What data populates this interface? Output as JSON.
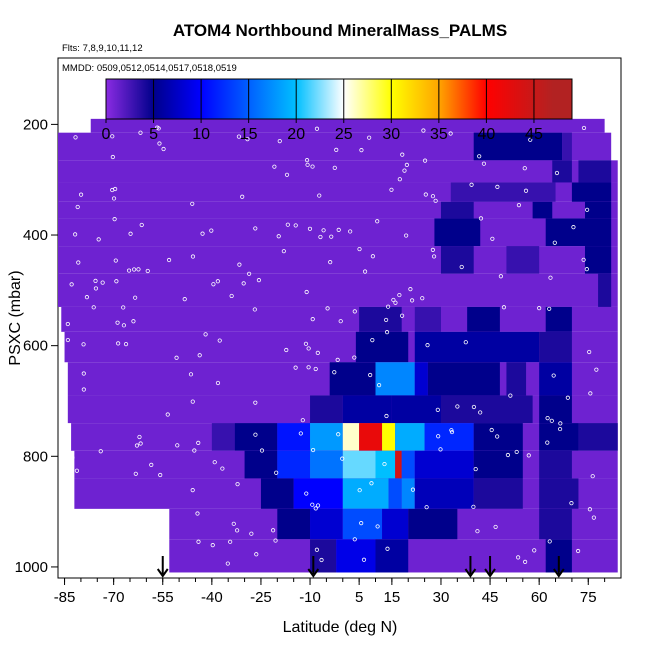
{
  "chart_data": {
    "type": "heatmap",
    "title": "ATOM4 Northbound MineralMass_PALMS",
    "notes": [
      "Flts: 7,8,9,10,11,12",
      "MMDD: 0509,0512,0514,0517,0518,0519"
    ],
    "xlabel": "Latitude (deg N)",
    "ylabel": "PSXC (mbar)",
    "xlim": [
      -87,
      85
    ],
    "ylim": [
      1020,
      80
    ],
    "x_ticks": [
      -85,
      -70,
      -55,
      -40,
      -25,
      -10,
      5,
      15,
      30,
      45,
      60,
      75
    ],
    "y_ticks": [
      200,
      400,
      600,
      800,
      1000
    ],
    "colorbar": {
      "min": 0,
      "max": 49,
      "ticks": [
        0,
        5,
        10,
        15,
        20,
        25,
        30,
        35,
        40,
        45
      ],
      "colors": [
        "#8a2be2",
        "#00008b",
        "#0000ff",
        "#00bfff",
        "#ffffff",
        "#ffff00",
        "#ffa500",
        "#ff0000",
        "#b22222"
      ],
      "color_positions": [
        0,
        5,
        10,
        20,
        25,
        30,
        35,
        40,
        47
      ]
    },
    "background_value": 1,
    "pressure_bands": [
      {
        "p": [
          190,
          215
        ],
        "lat": [
          -77,
          80
        ],
        "cells": []
      },
      {
        "p": [
          215,
          265
        ],
        "lat": [
          -87,
          82
        ],
        "cells": [
          {
            "lat": [
              40,
              67
            ],
            "v": 5
          },
          {
            "lat": [
              67,
              70
            ],
            "v": 3
          }
        ]
      },
      {
        "p": [
          265,
          305
        ],
        "lat": [
          -87,
          84
        ],
        "cells": [
          {
            "lat": [
              64,
              70
            ],
            "v": 4
          },
          {
            "lat": [
              72,
              82
            ],
            "v": 4
          }
        ]
      },
      {
        "p": [
          305,
          340
        ],
        "lat": [
          -87,
          84
        ],
        "cells": [
          {
            "lat": [
              33,
              65
            ],
            "v": 3
          },
          {
            "lat": [
              70,
              82
            ],
            "v": 5
          }
        ]
      },
      {
        "p": [
          340,
          370
        ],
        "lat": [
          -87,
          84
        ],
        "cells": [
          {
            "lat": [
              30,
              40
            ],
            "v": 4
          },
          {
            "lat": [
              58,
              64
            ],
            "v": 5
          },
          {
            "lat": [
              74,
              82
            ],
            "v": 5
          }
        ]
      },
      {
        "p": [
          370,
          420
        ],
        "lat": [
          -87,
          84
        ],
        "cells": [
          {
            "lat": [
              28,
              42
            ],
            "v": 5
          },
          {
            "lat": [
              62,
              82
            ],
            "v": 5
          }
        ]
      },
      {
        "p": [
          420,
          470
        ],
        "lat": [
          -87,
          84
        ],
        "cells": [
          {
            "lat": [
              30,
              40
            ],
            "v": 4
          },
          {
            "lat": [
              50,
              60
            ],
            "v": 3
          },
          {
            "lat": [
              74,
              82
            ],
            "v": 5
          }
        ]
      },
      {
        "p": [
          470,
          530
        ],
        "lat": [
          -87,
          84
        ],
        "cells": [
          {
            "lat": [
              78,
              82
            ],
            "v": 4
          }
        ]
      },
      {
        "p": [
          530,
          575
        ],
        "lat": [
          -86,
          84
        ],
        "cells": [
          {
            "lat": [
              5,
              18
            ],
            "v": 4
          },
          {
            "lat": [
              22,
              30
            ],
            "v": 3
          },
          {
            "lat": [
              38,
              48
            ],
            "v": 5
          },
          {
            "lat": [
              62,
              70
            ],
            "v": 5
          }
        ]
      },
      {
        "p": [
          575,
          630
        ],
        "lat": [
          -85,
          84
        ],
        "cells": [
          {
            "lat": [
              4,
              20
            ],
            "v": 5
          },
          {
            "lat": [
              22,
              60
            ],
            "v": 6
          },
          {
            "lat": [
              60,
              70
            ],
            "v": 4
          }
        ]
      },
      {
        "p": [
          630,
          690
        ],
        "lat": [
          -84,
          84
        ],
        "cells": [
          {
            "lat": [
              -4,
              10
            ],
            "v": 5
          },
          {
            "lat": [
              10,
              22
            ],
            "v": 17
          },
          {
            "lat": [
              22,
              26
            ],
            "v": 8
          },
          {
            "lat": [
              26,
              48
            ],
            "v": 5
          },
          {
            "lat": [
              50,
              56
            ],
            "v": 4
          },
          {
            "lat": [
              60,
              70
            ],
            "v": 6
          }
        ]
      },
      {
        "p": [
          690,
          740
        ],
        "lat": [
          -84,
          84
        ],
        "cells": [
          {
            "lat": [
              -10,
              0
            ],
            "v": 4
          },
          {
            "lat": [
              0,
              15
            ],
            "v": 6
          },
          {
            "lat": [
              15,
              30
            ],
            "v": 6
          },
          {
            "lat": [
              30,
              58
            ],
            "v": 4
          },
          {
            "lat": [
              60,
              70
            ],
            "v": 5
          }
        ]
      },
      {
        "p": [
          740,
          790
        ],
        "lat": [
          -83,
          84
        ],
        "cells": [
          {
            "lat": [
              -40,
              -33
            ],
            "v": 3
          },
          {
            "lat": [
              -33,
              -20
            ],
            "v": 5
          },
          {
            "lat": [
              -20,
              -10
            ],
            "v": 11
          },
          {
            "lat": [
              -10,
              0
            ],
            "v": 18
          },
          {
            "lat": [
              0,
              5
            ],
            "v": 26
          },
          {
            "lat": [
              5,
              12
            ],
            "v": 42
          },
          {
            "lat": [
              12,
              16
            ],
            "v": 30
          },
          {
            "lat": [
              16,
              25
            ],
            "v": 19
          },
          {
            "lat": [
              25,
              40
            ],
            "v": 12
          },
          {
            "lat": [
              40,
              55
            ],
            "v": 5
          },
          {
            "lat": [
              60,
              72
            ],
            "v": 5
          },
          {
            "lat": [
              72,
              84
            ],
            "v": 4
          }
        ]
      },
      {
        "p": [
          790,
          840
        ],
        "lat": [
          -82,
          84
        ],
        "cells": [
          {
            "lat": [
              -30,
              -20
            ],
            "v": 5
          },
          {
            "lat": [
              -20,
              -10
            ],
            "v": 12
          },
          {
            "lat": [
              -10,
              0
            ],
            "v": 16
          },
          {
            "lat": [
              0,
              10
            ],
            "v": 22
          },
          {
            "lat": [
              10,
              16
            ],
            "v": 20
          },
          {
            "lat": [
              16,
              18
            ],
            "v": 44
          },
          {
            "lat": [
              18,
              22
            ],
            "v": 14
          },
          {
            "lat": [
              22,
              40
            ],
            "v": 8
          },
          {
            "lat": [
              40,
              55
            ],
            "v": 5
          },
          {
            "lat": [
              60,
              70
            ],
            "v": 4
          }
        ]
      },
      {
        "p": [
          840,
          895
        ],
        "lat": [
          -82,
          84
        ],
        "cells": [
          {
            "lat": [
              -25,
              -15
            ],
            "v": 5
          },
          {
            "lat": [
              -15,
              0
            ],
            "v": 10
          },
          {
            "lat": [
              0,
              14
            ],
            "v": 19
          },
          {
            "lat": [
              14,
              18
            ],
            "v": 14
          },
          {
            "lat": [
              18,
              22
            ],
            "v": 17
          },
          {
            "lat": [
              22,
              40
            ],
            "v": 7
          },
          {
            "lat": [
              40,
              55
            ],
            "v": 4
          },
          {
            "lat": [
              60,
              72
            ],
            "v": 4
          }
        ]
      },
      {
        "p": [
          895,
          950
        ],
        "lat": [
          -53,
          84
        ],
        "cells": [
          {
            "lat": [
              -20,
              -10
            ],
            "v": 5
          },
          {
            "lat": [
              -10,
              0
            ],
            "v": 8
          },
          {
            "lat": [
              0,
              12
            ],
            "v": 14
          },
          {
            "lat": [
              12,
              20
            ],
            "v": 8
          },
          {
            "lat": [
              20,
              35
            ],
            "v": 5
          },
          {
            "lat": [
              60,
              70
            ],
            "v": 4
          }
        ]
      },
      {
        "p": [
          950,
          1010
        ],
        "lat": [
          -53,
          84
        ],
        "cells": [
          {
            "lat": [
              -10,
              -2
            ],
            "v": 4
          },
          {
            "lat": [
              -2,
              10
            ],
            "v": 9
          },
          {
            "lat": [
              10,
              20
            ],
            "v": 6
          },
          {
            "lat": [
              62,
              70
            ],
            "v": 5
          }
        ]
      }
    ],
    "arrows_lat": [
      -55,
      -9,
      39,
      45,
      66
    ]
  }
}
